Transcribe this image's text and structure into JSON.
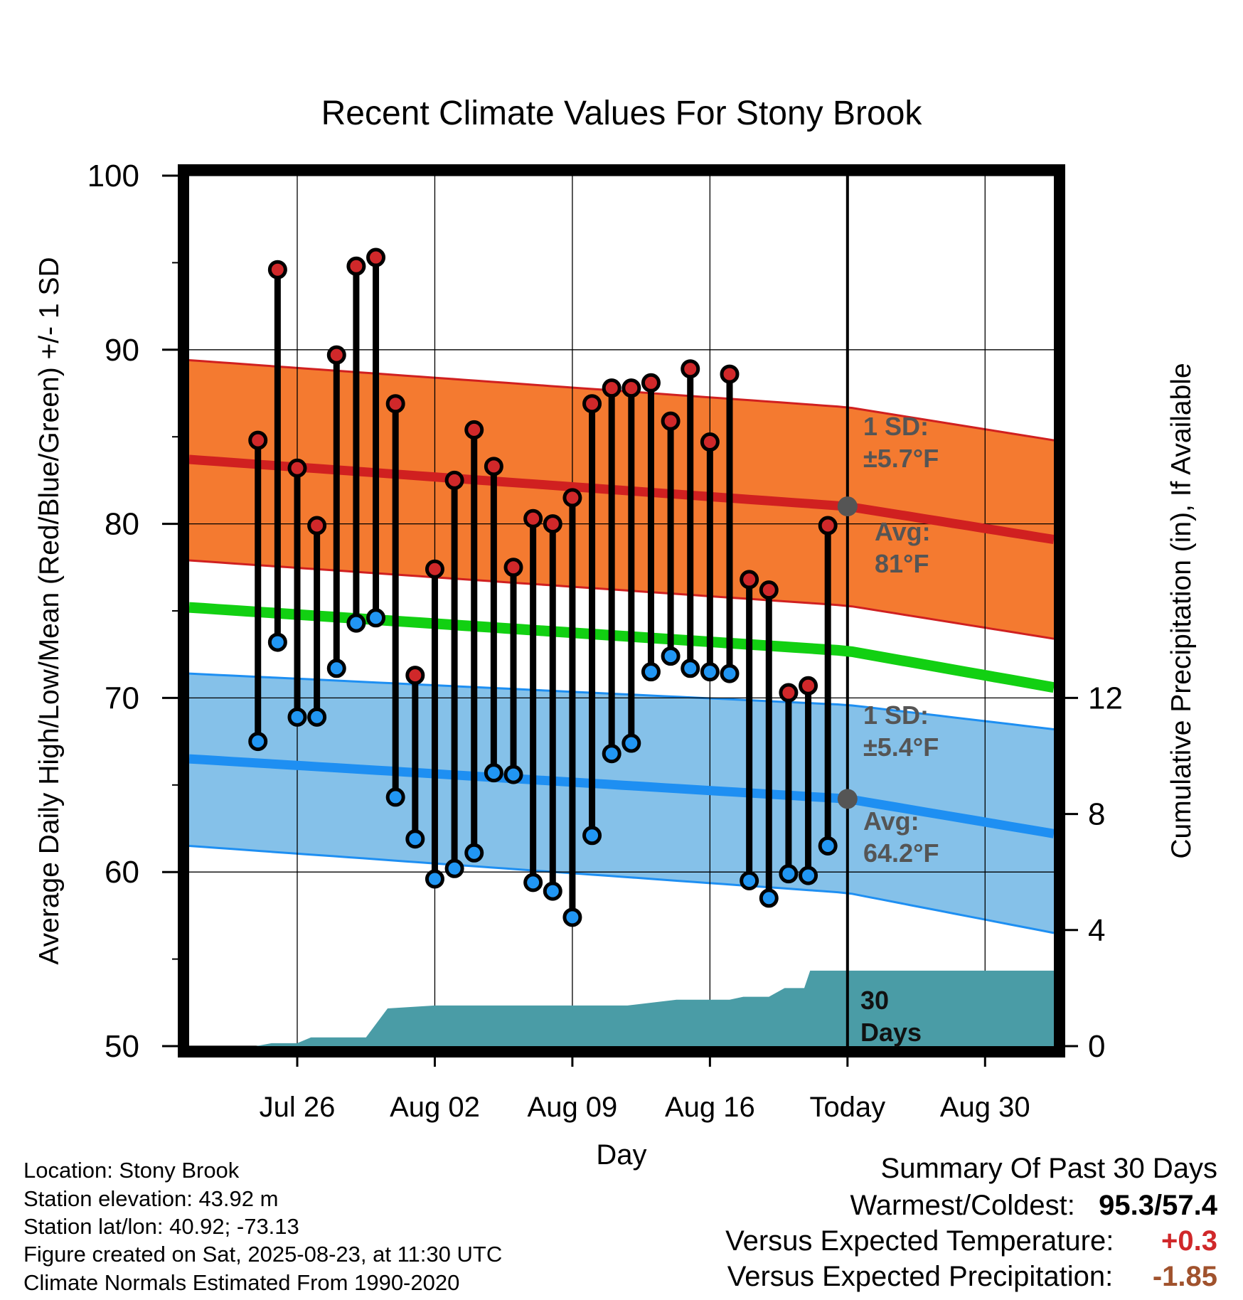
{
  "chart_data": {
    "type": "line",
    "title": "Recent Climate Values For Stony Brook",
    "xlabel": "Day",
    "ylabel": "Average Daily High/Low/Mean (Red/Blue/Green) +/- 1 SD",
    "y2label": "Cumulative Precipitation (in), If Available",
    "ylim": [
      50,
      100
    ],
    "y2lim": [
      0,
      30
    ],
    "xlim": [
      -33.5,
      10.5
    ],
    "x_unit": "days relative to Today",
    "yticks": [
      "50",
      "60",
      "70",
      "80",
      "90",
      "100"
    ],
    "y2ticks": [
      "0",
      "4",
      "8",
      "12"
    ],
    "xticks": [
      {
        "x": -28,
        "label": "Jul 26"
      },
      {
        "x": -21,
        "label": "Aug 02"
      },
      {
        "x": -14,
        "label": "Aug 09"
      },
      {
        "x": -7,
        "label": "Aug 16"
      },
      {
        "x": 0,
        "label": "Today"
      },
      {
        "x": 7,
        "label": "Aug 30"
      }
    ],
    "grid": true,
    "observed": {
      "x": [
        -30,
        -29,
        -28,
        -27,
        -26,
        -25,
        -24,
        -23,
        -22,
        -21,
        -20,
        -19,
        -18,
        -17,
        -16,
        -15,
        -14,
        -13,
        -12,
        -11,
        -10,
        -9,
        -8,
        -7,
        -6,
        -5,
        -4,
        -3,
        -2,
        -1
      ],
      "highs": [
        84.8,
        94.6,
        83.2,
        79.9,
        89.7,
        94.8,
        95.3,
        86.9,
        71.3,
        77.4,
        82.5,
        85.4,
        83.3,
        77.5,
        80.3,
        80.0,
        81.5,
        86.9,
        87.8,
        87.8,
        88.1,
        85.9,
        88.9,
        84.7,
        88.6,
        76.8,
        76.2,
        70.3,
        70.7,
        79.9
      ],
      "lows": [
        67.5,
        73.2,
        68.9,
        68.9,
        71.7,
        74.3,
        74.6,
        64.3,
        61.9,
        59.6,
        60.2,
        61.1,
        65.7,
        65.6,
        59.4,
        58.9,
        57.4,
        62.1,
        66.8,
        67.4,
        71.5,
        72.4,
        71.7,
        71.5,
        71.4,
        59.5,
        58.5,
        59.9,
        59.8,
        61.5
      ]
    },
    "normals": {
      "x": [
        -33.5,
        0,
        10.5
      ],
      "avg_high": [
        83.7,
        81.0,
        79.1
      ],
      "avg_low": [
        66.5,
        64.2,
        62.2
      ],
      "mean": [
        75.2,
        72.7,
        70.6
      ],
      "high_sd_upper": [
        89.4,
        86.7,
        84.8
      ],
      "high_sd_lower": [
        77.9,
        75.3,
        73.4
      ],
      "low_sd_upper": [
        71.4,
        69.6,
        68.2
      ],
      "low_sd_lower": [
        61.5,
        58.8,
        56.5
      ]
    },
    "precip_cumulative": {
      "x": [
        -33.5,
        -30.1,
        -29.3,
        -28,
        -27.3,
        -24.5,
        -23.4,
        -21,
        -17.6,
        -16,
        -12.2,
        -11.2,
        -8.7,
        -6,
        -5.3,
        -4,
        -3.2,
        -2.2,
        -1.9,
        0,
        10.5
      ],
      "values": [
        0,
        0,
        0.1,
        0.1,
        0.3,
        0.3,
        1.3,
        1.4,
        1.4,
        1.4,
        1.4,
        1.4,
        1.6,
        1.6,
        1.7,
        1.7,
        2.0,
        2.0,
        2.6,
        2.6,
        2.6
      ]
    },
    "annotations": {
      "high_sd_label": [
        "1 SD:",
        "±5.7°F"
      ],
      "high_avg_label": [
        "Avg:",
        "81°F"
      ],
      "low_sd_label": [
        "1 SD:",
        "±5.4°F"
      ],
      "low_avg_label": [
        "Avg:",
        "64.2°F"
      ],
      "today_high_avg": 81.0,
      "today_low_avg": 64.2,
      "days_label": [
        "30",
        "Days"
      ]
    },
    "colors": {
      "high_band": "#f47a30",
      "high_line": "#d02020",
      "low_band": "#85c1e9",
      "low_line": "#1e8ff2",
      "mean_line": "#12d012",
      "precip": "#4a9ca6",
      "high_marker": "#d0282a",
      "low_marker": "#2196f3",
      "annotation": "#555555"
    }
  },
  "footer": {
    "location": "Location: Stony Brook",
    "elevation": "Station elevation: 43.92 m",
    "latlon": "Station lat/lon: 40.92; -73.13",
    "created": "Figure created on Sat, 2025-08-23, at 11:30 UTC",
    "normals": "Climate Normals Estimated From 1990-2020"
  },
  "summary": {
    "title": "Summary Of Past 30 Days",
    "warm_cold_label": "Warmest/Coldest:",
    "warmest": "95.3",
    "coldest": "57.4",
    "temp_label": "Versus Expected Temperature:",
    "temp_value": "+0.3",
    "temp_color": "#d0282a",
    "precip_label": "Versus Expected Precipitation:",
    "precip_value": "-1.85",
    "precip_color": "#a0522d"
  }
}
